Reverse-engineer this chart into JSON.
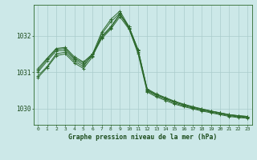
{
  "title": "Graphe pression niveau de la mer (hPa)",
  "background_color": "#cce8e8",
  "grid_color": "#aacccc",
  "line_color": "#2d6a2d",
  "marker_color": "#2d6a2d",
  "xlim": [
    -0.5,
    23.5
  ],
  "ylim": [
    1029.55,
    1032.85
  ],
  "yticks": [
    1030,
    1031,
    1032
  ],
  "xticks": [
    0,
    1,
    2,
    3,
    4,
    5,
    6,
    7,
    8,
    9,
    10,
    11,
    12,
    13,
    14,
    15,
    16,
    17,
    18,
    19,
    20,
    21,
    22,
    23
  ],
  "series": [
    [
      1030.9,
      1031.15,
      1031.5,
      1031.55,
      1031.3,
      1031.15,
      1031.5,
      1032.1,
      1032.45,
      1032.68,
      1032.25,
      1031.6,
      1030.5,
      1030.38,
      1030.28,
      1030.18,
      1030.1,
      1030.04,
      1029.98,
      1029.93,
      1029.88,
      1029.83,
      1029.8,
      1029.78
    ],
    [
      1031.0,
      1031.3,
      1031.58,
      1031.6,
      1031.35,
      1031.2,
      1031.45,
      1031.92,
      1032.18,
      1032.52,
      1032.18,
      1031.55,
      1030.48,
      1030.35,
      1030.25,
      1030.15,
      1030.07,
      1030.01,
      1029.95,
      1029.9,
      1029.85,
      1029.8,
      1029.77,
      1029.75
    ],
    [
      1031.05,
      1031.35,
      1031.62,
      1031.65,
      1031.38,
      1031.25,
      1031.48,
      1031.95,
      1032.22,
      1032.58,
      1032.22,
      1031.6,
      1030.52,
      1030.38,
      1030.28,
      1030.18,
      1030.1,
      1030.03,
      1029.97,
      1029.92,
      1029.87,
      1029.82,
      1029.79,
      1029.77
    ],
    [
      1031.1,
      1031.38,
      1031.65,
      1031.68,
      1031.42,
      1031.28,
      1031.5,
      1031.98,
      1032.25,
      1032.6,
      1032.25,
      1031.62,
      1030.54,
      1030.4,
      1030.3,
      1030.2,
      1030.12,
      1030.05,
      1029.99,
      1029.93,
      1029.88,
      1029.83,
      1029.8,
      1029.78
    ],
    [
      1030.85,
      1031.12,
      1031.45,
      1031.5,
      1031.25,
      1031.1,
      1031.42,
      1032.05,
      1032.38,
      1032.62,
      1032.2,
      1031.5,
      1030.45,
      1030.32,
      1030.22,
      1030.12,
      1030.05,
      1029.99,
      1029.93,
      1029.88,
      1029.83,
      1029.78,
      1029.75,
      1029.73
    ]
  ]
}
